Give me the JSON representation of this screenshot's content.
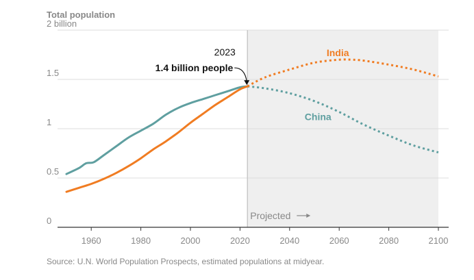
{
  "chart_data": {
    "type": "line",
    "title": "Total population",
    "xlabel": "",
    "ylabel": "",
    "xlim": [
      1950,
      2100
    ],
    "ylim": [
      0,
      2
    ],
    "x_ticks": [
      1960,
      1980,
      2000,
      2020,
      2040,
      2060,
      2080,
      2100
    ],
    "y_ticks": [
      {
        "value": 0,
        "label": "0"
      },
      {
        "value": 0.5,
        "label": "0.5"
      },
      {
        "value": 1,
        "label": "1"
      },
      {
        "value": 1.5,
        "label": "1.5"
      },
      {
        "value": 2,
        "label": "2 billion"
      }
    ],
    "projection_start": 2023,
    "projection_label": "Projected",
    "series": [
      {
        "name": "India",
        "color": "#f07c22",
        "label_at": [
          2060,
          1.77
        ],
        "historical": [
          [
            1950,
            0.36
          ],
          [
            1955,
            0.4
          ],
          [
            1960,
            0.44
          ],
          [
            1965,
            0.49
          ],
          [
            1970,
            0.55
          ],
          [
            1975,
            0.62
          ],
          [
            1980,
            0.7
          ],
          [
            1985,
            0.79
          ],
          [
            1990,
            0.87
          ],
          [
            1995,
            0.96
          ],
          [
            2000,
            1.06
          ],
          [
            2005,
            1.15
          ],
          [
            2010,
            1.24
          ],
          [
            2015,
            1.32
          ],
          [
            2020,
            1.4
          ],
          [
            2023,
            1.43
          ]
        ],
        "projected": [
          [
            2023,
            1.43
          ],
          [
            2030,
            1.52
          ],
          [
            2040,
            1.6
          ],
          [
            2050,
            1.67
          ],
          [
            2060,
            1.7
          ],
          [
            2065,
            1.7
          ],
          [
            2070,
            1.69
          ],
          [
            2080,
            1.65
          ],
          [
            2090,
            1.6
          ],
          [
            2100,
            1.53
          ]
        ]
      },
      {
        "name": "China",
        "color": "#5f9fa0",
        "label_at": [
          2052,
          1.12
        ],
        "historical": [
          [
            1950,
            0.54
          ],
          [
            1955,
            0.6
          ],
          [
            1958,
            0.65
          ],
          [
            1961,
            0.66
          ],
          [
            1965,
            0.73
          ],
          [
            1970,
            0.82
          ],
          [
            1975,
            0.91
          ],
          [
            1980,
            0.98
          ],
          [
            1985,
            1.05
          ],
          [
            1990,
            1.14
          ],
          [
            1995,
            1.21
          ],
          [
            2000,
            1.26
          ],
          [
            2005,
            1.3
          ],
          [
            2010,
            1.34
          ],
          [
            2015,
            1.38
          ],
          [
            2020,
            1.42
          ],
          [
            2023,
            1.43
          ]
        ],
        "projected": [
          [
            2023,
            1.43
          ],
          [
            2030,
            1.41
          ],
          [
            2040,
            1.36
          ],
          [
            2050,
            1.28
          ],
          [
            2060,
            1.17
          ],
          [
            2070,
            1.04
          ],
          [
            2080,
            0.93
          ],
          [
            2090,
            0.83
          ],
          [
            2100,
            0.76
          ]
        ]
      }
    ],
    "annotation": {
      "year": "2023",
      "text": "1.4 billion people",
      "x": 2023,
      "y": 1.43
    },
    "source": "Source: U.N. World Population Prospects, estimated populations at midyear."
  }
}
